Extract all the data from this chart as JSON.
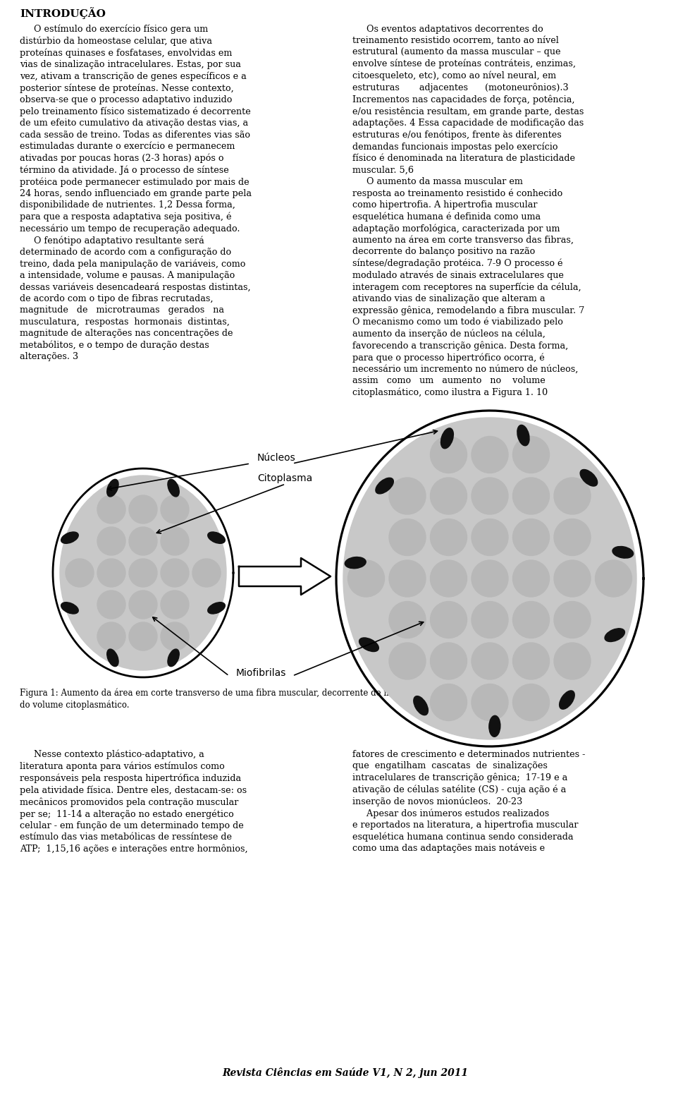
{
  "background_color": "#ffffff",
  "title": "INTRODUÇÃO",
  "figure_caption": "Figura 1: Aumento da área em corte transverso de uma fibra muscular, decorrente de incrementos no número de núcleos e\ndo volume citoplasmático.",
  "footer": "Revista Ciências em Saúde V1, N 2, jun 2011",
  "label_nucleos": "Núcleos",
  "label_citoplasma": "Citoplasma",
  "label_miofibrilas": "Miofibrilas",
  "left_col_text": "     O estímulo do exercício físico gera um\ndistúrbio da homeostase celular, que ativa\nproteínas quinases e fosfatases, envolvidas em\nvias de sinalização intracelulares. Estas, por sua\nvez, ativam a transcrição de genes específicos e a\nposterior síntese de proteínas. Nesse contexto,\nobserva-se que o processo adaptativo induzido\npelo treinamento físico sistematizado é decorrente\nde um efeito cumulativo da ativação destas vias, a\ncada sessão de treino. Todas as diferentes vias são\nestimuladas durante o exercício e permanecem\nativadas por poucas horas (2-3 horas) após o\ntérmino da atividade. Já o processo de síntese\nprotéica pode permanecer estimulado por mais de\n24 horas, sendo influenciado em grande parte pela\ndisponibilidade de nutrientes. 1,2 Dessa forma,\npara que a resposta adaptativa seja positiva, é\nnecessário um tempo de recuperação adequado.\n     O fenótipo adaptativo resultante será\ndeterminado de acordo com a configuração do\ntreino, dada pela manipulação de variáveis, como\na intensidade, volume e pausas. A manipulação\ndessas variáveis desencadeará respostas distintas,\nde acordo com o tipo de fibras recrutadas,\nmagnitude   de   microtraumas   gerados   na\nmusculatura,  respostas  hormonais  distintas,\nmagnitude de alterações nas concentrações de\nmetabólitos, e o tempo de duração destas\nalterações. 3",
  "right_col_text": "     Os eventos adaptativos decorrentes do\ntreinamento resistido ocorrem, tanto ao nível\nestrutural (aumento da massa muscular – que\nenvolve síntese de proteínas contráteis, enzimas,\ncitoesqueleto, etc), como ao nível neural, em\nestruturas       adjacentes      (motoneurônios).3\nIncrementos nas capacidades de força, potência,\ne/ou resistência resultam, em grande parte, destas\nadaptações. 4 Essa capacidade de modificação das\nestruturas e/ou fenótipos, frente às diferentes\ndemandas funcionais impostas pelo exercício\nfísico é denominada na literatura de plasticidade\nmuscular. 5,6\n     O aumento da massa muscular em\nresposta ao treinamento resistido é conhecido\ncomo hipertrofia. A hipertrofia muscular\nesquelética humana é definida como uma\nadaptação morfológica, caracterizada por um\naumento na área em corte transverso das fibras,\ndecorrente do balanço positivo na razão\nsíntese/degradação protéica. 7-9 O processo é\nmodulado através de sinais extracelulares que\ninteragem com receptores na superfície da célula,\nativando vias de sinalização que alteram a\nexpressão gênica, remodelando a fibra muscular. 7\nO mecanismo como um todo é viabilizado pelo\naumento da inserção de núcleos na célula,\nfavorecendo a transcrição gênica. Desta forma,\npara que o processo hipertrófico ocorra, é\nnecessário um incremento no número de núcleos,\nassim   como   um   aumento   no    volume\ncitoplasmático, como ilustra a Figura 1. 10",
  "bottom_left_text": "     Nesse contexto plástico-adaptativo, a\nliteratura aponta para vários estímulos como\nresponsáveis pela resposta hipertrófica induzida\npela atividade física. Dentre eles, destacam-se: os\nmecânicos promovidos pela contração muscular\nper se;  11-14 a alteração no estado energético\ncelular - em função de um determinado tempo de\nestímulo das vias metabólicas de ressíntese de\nATP;  1,15,16 ações e interações entre hormônios,",
  "bottom_right_text": "fatores de crescimento e determinados nutrientes -\nque  engatilham  cascatas  de  sinalizações\nintracelulares de transcrição gênica;  17-19 e a\nativação de células satélite (CS) - cuja ação é a\ninserção de novos mionúcleos.  20-23\n     Apesar dos inúmeros estudos realizados\ne reportados na literatura, a hipertrofia muscular\nesquelética humana continua sendo considerada\ncomo uma das adaptações mais notáveis e"
}
